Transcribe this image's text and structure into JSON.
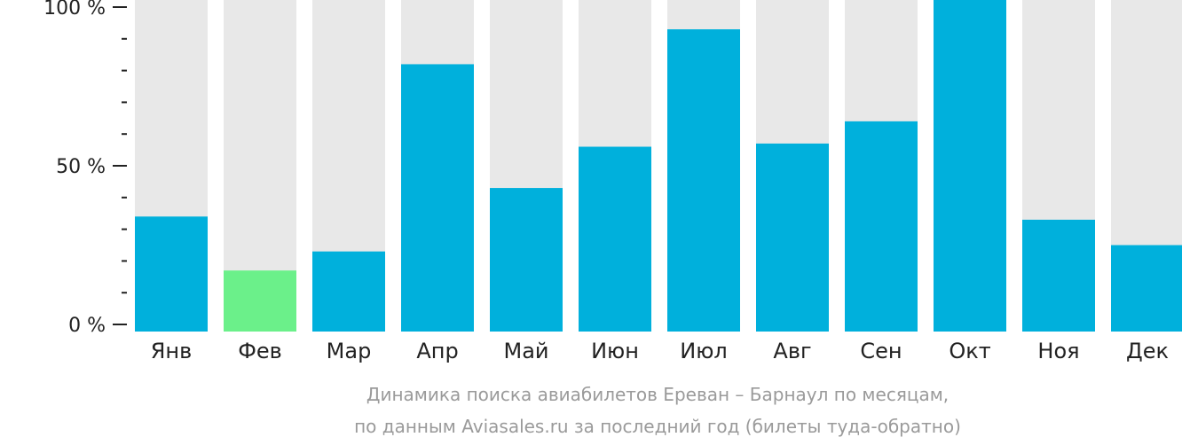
{
  "chart_data": {
    "type": "bar",
    "title": "Динамика поиска авиабилетов Ереван – Барнаул по месяцам,",
    "subtitle": "по данным Aviasales.ru за последний год (билеты туда-обратно)",
    "categories": [
      "Янв",
      "Фев",
      "Мар",
      "Апр",
      "Май",
      "Июн",
      "Июл",
      "Авг",
      "Сен",
      "Окт",
      "Ноя",
      "Дек"
    ],
    "values": [
      34,
      17,
      23,
      82,
      43,
      56,
      93,
      57,
      64,
      100,
      33,
      25
    ],
    "highlight_index": 1,
    "ylim": [
      0,
      100
    ],
    "yticks": [
      {
        "value": 0,
        "label": "0 %"
      },
      {
        "value": 50,
        "label": "50 %"
      },
      {
        "value": 100,
        "label": "100 %"
      }
    ],
    "minor_tick_step": 10,
    "grid": false,
    "colors": {
      "bar": "#00b0dc",
      "highlight": "#6bf08a",
      "background_bar": "#e8e8e8",
      "axis": "#222222",
      "caption": "#9a9a9a"
    }
  }
}
